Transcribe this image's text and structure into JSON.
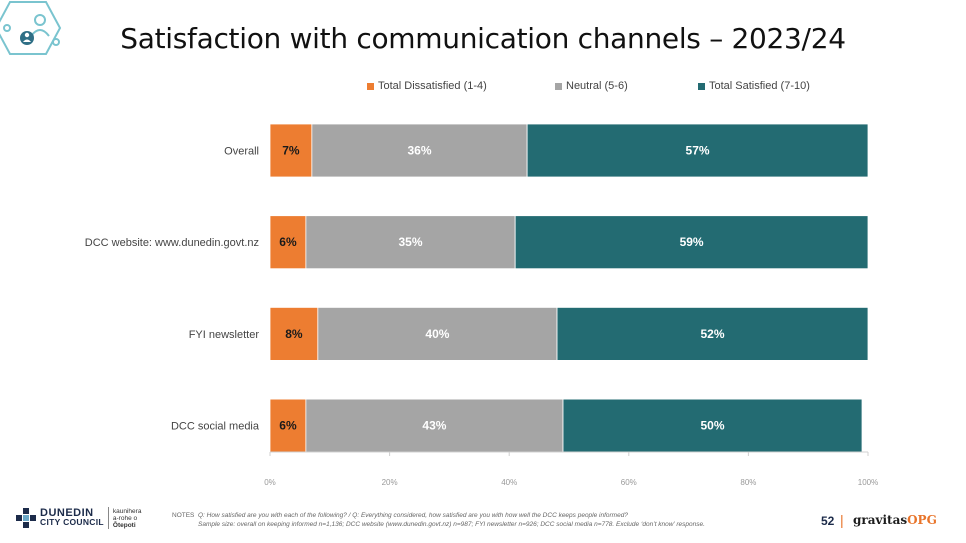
{
  "title": "Satisfaction with communication channels – 2023/24",
  "chart_data": {
    "type": "bar",
    "orientation": "horizontal-stacked-100",
    "categories": [
      "Overall",
      "DCC website: www.dunedin.govt.nz",
      "FYI newsletter",
      "DCC social media"
    ],
    "series": [
      {
        "name": "Total Dissatisfied (1-4)",
        "color": "#ed7d31",
        "values": [
          7,
          6,
          8,
          6
        ]
      },
      {
        "name": "Neutral (5-6)",
        "color": "#a5a5a5",
        "values": [
          36,
          35,
          40,
          43
        ]
      },
      {
        "name": "Total Satisfied (7-10)",
        "color": "#236b72",
        "values": [
          57,
          59,
          52,
          50
        ]
      }
    ],
    "data_labels": [
      [
        "7%",
        "36%",
        "57%"
      ],
      [
        "6%",
        "35%",
        "59%"
      ],
      [
        "8%",
        "40%",
        "52%"
      ],
      [
        "6%",
        "43%",
        "50%"
      ]
    ],
    "xlim": [
      0,
      100
    ],
    "x_ticks": [
      0,
      20,
      40,
      60,
      80,
      100
    ],
    "x_tick_labels": [
      "0%",
      "20%",
      "40%",
      "60%",
      "80%",
      "100%"
    ],
    "legend": "top",
    "grid": false
  },
  "footer": {
    "notes_label": "NOTES",
    "notes_line1": "Q: How satisfied are you with each of the following?   /   Q: Everything considered, how satisfied are you with how well the DCC keeps people informed?",
    "notes_line2": "Sample size: overall on keeping informed n=1,136; DCC website (www.dunedin.govt.nz) n=987; FYI newsletter n=926; DCC social media n=778. Exclude ‘don’t know’ response.",
    "page_number": "52",
    "brand_main": "gravitas",
    "brand_accent": "OPG",
    "council_line1": "DUNEDIN",
    "council_line2": "CITY COUNCIL",
    "council_maori1": "kaunihera",
    "council_maori2": "a-rohe o",
    "council_maori3": "Ōtepoti"
  }
}
